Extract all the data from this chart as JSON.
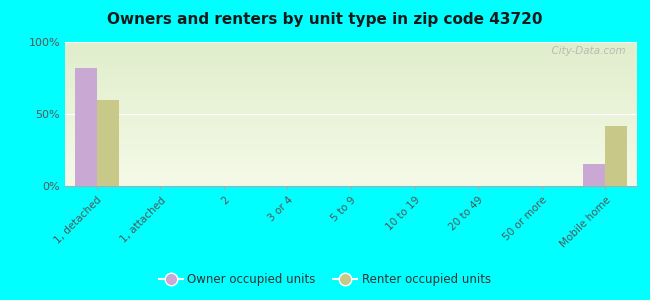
{
  "title": "Owners and renters by unit type in zip code 43720",
  "categories": [
    "1, detached",
    "1, attached",
    "2",
    "3 or 4",
    "5 to 9",
    "10 to 19",
    "20 to 49",
    "50 or more",
    "Mobile home"
  ],
  "owner_values": [
    82,
    0,
    0,
    0,
    0,
    0,
    0,
    0,
    15
  ],
  "renter_values": [
    60,
    0,
    0,
    0,
    0,
    0,
    0,
    0,
    42
  ],
  "owner_color": "#c9a8d4",
  "renter_color": "#c8c888",
  "background_color": "#00ffff",
  "plot_bg_top": "#e0eecc",
  "plot_bg_bottom": "#f5fae8",
  "ylabel_ticks": [
    "0%",
    "50%",
    "100%"
  ],
  "ytick_values": [
    0,
    50,
    100
  ],
  "ylim": [
    0,
    100
  ],
  "bar_width": 0.35,
  "legend_owner": "Owner occupied units",
  "legend_renter": "Renter occupied units",
  "watermark": "  City-Data.com"
}
